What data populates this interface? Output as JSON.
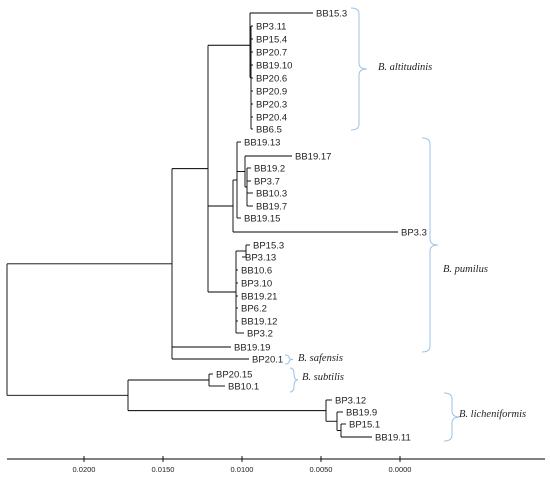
{
  "leaves": [
    {
      "id": "BB15.3",
      "label": "BB15.3"
    },
    {
      "id": "BP3.11",
      "label": "BP3.11"
    },
    {
      "id": "BP15.4",
      "label": "BP15.4"
    },
    {
      "id": "BP20.7",
      "label": "BP20.7"
    },
    {
      "id": "BB19.10",
      "label": "BB19.10"
    },
    {
      "id": "BP20.6",
      "label": "BP20.6"
    },
    {
      "id": "BP20.9",
      "label": "BP20.9"
    },
    {
      "id": "BP20.3",
      "label": "BP20.3"
    },
    {
      "id": "BP20.4",
      "label": "BP20.4"
    },
    {
      "id": "BB6.5",
      "label": "BB6.5"
    },
    {
      "id": "BB19.13",
      "label": "BB19.13"
    },
    {
      "id": "BB19.17",
      "label": "BB19.17"
    },
    {
      "id": "BB19.2",
      "label": "BB19.2"
    },
    {
      "id": "BP3.7",
      "label": "BP3.7"
    },
    {
      "id": "BB10.3",
      "label": "BB10.3"
    },
    {
      "id": "BB19.7",
      "label": "BB19.7"
    },
    {
      "id": "BB19.15",
      "label": "BB19.15"
    },
    {
      "id": "BP3.3",
      "label": "BP3.3"
    },
    {
      "id": "BP15.3",
      "label": "BP15.3"
    },
    {
      "id": "BP3.13",
      "label": "BP3.13"
    },
    {
      "id": "BB10.6",
      "label": "BB10.6"
    },
    {
      "id": "BP3.10",
      "label": "BP3.10"
    },
    {
      "id": "BB19.21",
      "label": "BB19.21"
    },
    {
      "id": "BP6.2",
      "label": "BP6.2"
    },
    {
      "id": "BB19.12",
      "label": "BB19.12"
    },
    {
      "id": "BP3.2",
      "label": "BP3.2"
    },
    {
      "id": "BB19.19",
      "label": "BB19.19"
    },
    {
      "id": "BP20.1",
      "label": "BP20.1"
    },
    {
      "id": "BP20.15",
      "label": "BP20.15"
    },
    {
      "id": "BB10.1",
      "label": "BB10.1"
    },
    {
      "id": "BP3.12",
      "label": "BP3.12"
    },
    {
      "id": "BB19.9",
      "label": "BB19.9"
    },
    {
      "id": "BP15.1",
      "label": "BP15.1"
    },
    {
      "id": "BB19.11",
      "label": "BB19.11"
    }
  ],
  "clades": [
    {
      "id": "altitudinis",
      "label": "B. altitudinis"
    },
    {
      "id": "pumilus",
      "label": "B. pumilus"
    },
    {
      "id": "safensis",
      "label": "B. safensis"
    },
    {
      "id": "subtilis",
      "label": "B. subtilis"
    },
    {
      "id": "licheniformis",
      "label": "B. licheniformis"
    }
  ],
  "scale": {
    "ticks": [
      {
        "value": 0.02,
        "label": "0.0200"
      },
      {
        "value": 0.015,
        "label": "0.0150"
      },
      {
        "value": 0.01,
        "label": "0.0100"
      },
      {
        "value": 0.005,
        "label": "0.0050"
      },
      {
        "value": 0.0,
        "label": "0.0000"
      }
    ]
  },
  "colors": {
    "branch": "#000000",
    "brace": "#9dc3e6",
    "text": "#222222"
  }
}
